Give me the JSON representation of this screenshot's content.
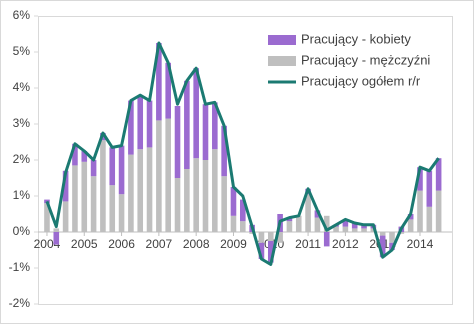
{
  "chart_data": {
    "type": "bar",
    "stacked": true,
    "categories": [
      "2004",
      null,
      null,
      null,
      "2005",
      null,
      null,
      null,
      "2006",
      null,
      null,
      null,
      "2007",
      null,
      null,
      null,
      "2008",
      null,
      null,
      null,
      "2009",
      null,
      null,
      null,
      "2010",
      null,
      null,
      null,
      "2011",
      null,
      null,
      null,
      "2012",
      null,
      null,
      null,
      "2013",
      null,
      null,
      null,
      "2014",
      null,
      null
    ],
    "series": [
      {
        "name": "Pracujący - kobiety",
        "color": "#9b6bd0",
        "type": "bar",
        "values": [
          0.1,
          -0.35,
          0.85,
          0.6,
          0.3,
          0.45,
          0.2,
          1.05,
          1.35,
          1.5,
          1.5,
          1.3,
          2.15,
          1.55,
          2.0,
          2.45,
          2.5,
          1.55,
          1.3,
          1.4,
          0.8,
          0.6,
          0.2,
          -0.45,
          -0.6,
          0.5,
          0.1,
          0.0,
          0.15,
          0.2,
          -0.4,
          0.05,
          0.2,
          0.15,
          0.1,
          0.1,
          -0.6,
          -0.2,
          0.15,
          0.15,
          0.65,
          1.0,
          0.9
        ]
      },
      {
        "name": "Pracujący - mężczyźni",
        "color": "#bfbfbf",
        "type": "bar",
        "values": [
          0.8,
          0.1,
          0.85,
          1.85,
          1.95,
          1.55,
          2.55,
          1.3,
          1.05,
          2.15,
          2.3,
          2.35,
          3.1,
          3.15,
          1.5,
          1.75,
          2.05,
          2.0,
          2.3,
          1.55,
          0.45,
          0.3,
          -0.05,
          -0.3,
          -0.25,
          -0.3,
          0.3,
          0.45,
          1.05,
          0.4,
          0.45,
          0.15,
          0.15,
          0.1,
          0.1,
          0.1,
          -0.1,
          -0.3,
          -0.05,
          0.35,
          1.15,
          0.7,
          1.15
        ]
      },
      {
        "name": "Pracujący ogółem r/r",
        "color": "#1b7a72",
        "type": "line",
        "values": [
          0.85,
          0.15,
          1.65,
          2.45,
          2.25,
          2.0,
          2.75,
          2.35,
          2.4,
          3.65,
          3.8,
          3.65,
          5.25,
          4.7,
          3.55,
          4.2,
          4.55,
          3.55,
          3.6,
          2.95,
          1.25,
          1.0,
          0.15,
          -0.75,
          -0.9,
          0.3,
          0.4,
          0.45,
          1.2,
          0.6,
          0.05,
          0.2,
          0.35,
          0.25,
          0.2,
          0.2,
          -0.7,
          -0.5,
          0.1,
          0.5,
          1.8,
          1.7,
          2.05
        ]
      }
    ],
    "ylim": [
      -2,
      6
    ],
    "yticks": [
      {
        "value": -2,
        "label": "-2%"
      },
      {
        "value": -1,
        "label": "-1%"
      },
      {
        "value": 0,
        "label": "0%"
      },
      {
        "value": 1,
        "label": "1%"
      },
      {
        "value": 2,
        "label": "2%"
      },
      {
        "value": 3,
        "label": "3%"
      },
      {
        "value": 4,
        "label": "4%"
      },
      {
        "value": 5,
        "label": "5%"
      },
      {
        "value": 6,
        "label": "6%"
      }
    ],
    "grid": false,
    "legend": "upper right"
  }
}
